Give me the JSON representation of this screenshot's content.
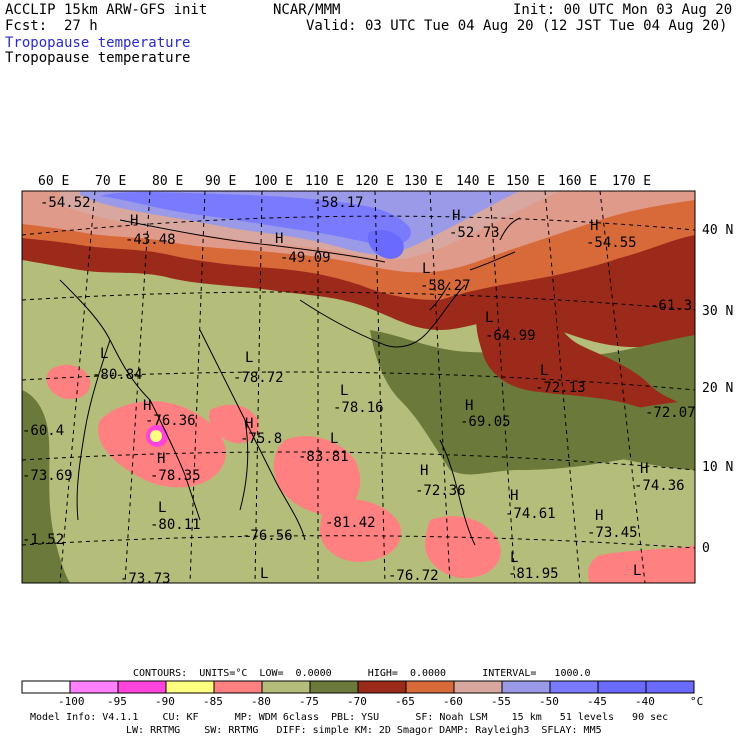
{
  "header": {
    "model_title": "ACCLIP 15km ARW-GFS init",
    "org": "NCAR/MMM",
    "init": "Init: 00 UTC Mon 03 Aug 20",
    "fcst_label": "Fcst:",
    "fcst_value": "27 h",
    "valid": "Valid: 03 UTC Tue 04 Aug 20 (12 JST Tue 04 Aug 20)",
    "field_title_1": "Tropopause temperature",
    "field_title_2": "Tropopause temperature"
  },
  "map": {
    "lon_labels": [
      "60 E",
      "70 E",
      "80 E",
      "90 E",
      "100 E",
      "110 E",
      "120 E",
      "130 E",
      "140 E",
      "150 E",
      "160 E",
      "170 E"
    ],
    "lat_labels": [
      "40 N",
      "30 N",
      "20 N",
      "10 N",
      "0"
    ],
    "colors": {
      "lt_-95": "#ff80ff",
      "-95_-90": "#ff44dd",
      "-90_-85": "#ffff80",
      "-85_-80": "#ff8080",
      "-80_-75": "#b5bd7a",
      "-75_-70": "#6b7a3a",
      "-70_-65": "#9b2a1a",
      "-65_-60": "#d86a3a",
      "-60_-55": "#e09a8a",
      "-55_-50": "#d8a8a0",
      "-50_-45": "#9a9ae8",
      "-45_-40": "#7a7aff",
      "gt_-40": "#6a6aff"
    },
    "annotations": [
      {
        "text": "-54.52"
      },
      {
        "text": "H"
      },
      {
        "text": "-43.48"
      },
      {
        "text": "H"
      },
      {
        "text": "-49.09"
      },
      {
        "text": "-58.17"
      },
      {
        "text": "H"
      },
      {
        "text": "-52.73"
      },
      {
        "text": "H"
      },
      {
        "text": "-54.55"
      },
      {
        "text": "L"
      },
      {
        "text": "-58.27"
      },
      {
        "text": "-61.3"
      },
      {
        "text": "L"
      },
      {
        "text": "-64.99"
      },
      {
        "text": "L"
      },
      {
        "text": "-80.84"
      },
      {
        "text": "L"
      },
      {
        "text": "-78.72"
      },
      {
        "text": "L"
      },
      {
        "text": "-78.16"
      },
      {
        "text": "L"
      },
      {
        "text": "-72.13"
      },
      {
        "text": "-72.07"
      },
      {
        "text": "H"
      },
      {
        "text": "-76.36"
      },
      {
        "text": "H"
      },
      {
        "text": "-75.8"
      },
      {
        "text": "H"
      },
      {
        "text": "-69.05"
      },
      {
        "text": "-60.4"
      },
      {
        "text": "H"
      },
      {
        "text": "-78.35"
      },
      {
        "text": "-83.81"
      },
      {
        "text": "L"
      },
      {
        "text": "H"
      },
      {
        "text": "-74.36"
      },
      {
        "text": "H"
      },
      {
        "text": "-72.36"
      },
      {
        "text": "-73.69"
      },
      {
        "text": "L"
      },
      {
        "text": "-80.11"
      },
      {
        "text": "-76.56"
      },
      {
        "text": "-81.42"
      },
      {
        "text": "H"
      },
      {
        "text": "-74.61"
      },
      {
        "text": "H"
      },
      {
        "text": "-73.45"
      },
      {
        "text": "-1.52"
      },
      {
        "text": "L"
      },
      {
        "text": "-76.72"
      },
      {
        "text": "L"
      },
      {
        "text": "-81.95"
      },
      {
        "text": "L"
      },
      {
        "text": "-73.73"
      }
    ]
  },
  "legend": {
    "contours": "CONTOURS:  UNITS=°C  LOW=  0.0000      HIGH=  0.0000      INTERVAL=   1000.0",
    "ticks": [
      "-100",
      "-95",
      "-90",
      "-85",
      "-80",
      "-75",
      "-70",
      "-65",
      "-60",
      "-55",
      "-50",
      "-45",
      "-40"
    ],
    "unit": "°C",
    "model_info_1": "Model Info: V4.1.1    CU: KF      MP: WDM 6class  PBL: YSU      SF: Noah LSM    15 km   51 levels   90 sec",
    "model_info_2": "LW: RRTMG    SW: RRTMG   DIFF: simple KM: 2D Smagor DAMP: Rayleigh3  SFLAY: MM5"
  }
}
